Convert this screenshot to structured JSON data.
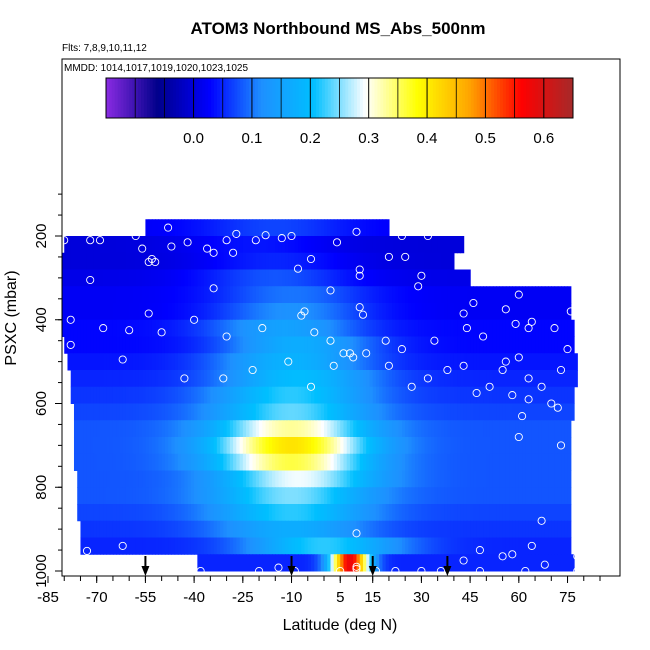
{
  "chart_data": {
    "type": "heatmap",
    "title": "ATOM3 Northbound MS_Abs_500nm",
    "subtitle_flights": "Flts: 7,8,9,10,11,12",
    "subtitle_dates": "MMDD: 1014,1017,1019,1020,1023,1025",
    "xlabel": "Latitude (deg N)",
    "ylabel": "PSXC (mbar)",
    "xlim": [
      -85,
      85
    ],
    "ylim": [
      1000,
      0
    ],
    "x_ticks": [
      "-85",
      "-70",
      "-55",
      "-40",
      "-25",
      "-10",
      "5",
      "15",
      "30",
      "45",
      "60",
      "75"
    ],
    "x_tick_values": [
      -85,
      -70,
      -55,
      -40,
      -25,
      -10,
      5,
      15,
      30,
      45,
      60,
      75
    ],
    "y_ticks": [
      "200",
      "400",
      "600",
      "800",
      "1000"
    ],
    "y_tick_values": [
      200,
      400,
      600,
      800,
      1000
    ],
    "colorbar": {
      "range": [
        -0.15,
        0.65
      ],
      "ticks": [
        "0.0",
        "0.1",
        "0.2",
        "0.3",
        "0.4",
        "0.5",
        "0.6"
      ],
      "tick_values": [
        0.0,
        0.1,
        0.2,
        0.3,
        0.4,
        0.5,
        0.6
      ],
      "colors": [
        "#8a2be2",
        "#00008b",
        "#0000ff",
        "#1e90ff",
        "#00bfff",
        "#ffffff",
        "#ffff00",
        "#ffa500",
        "#ff0000",
        "#a52a2a"
      ]
    },
    "grid": false,
    "legend": "colorbar-top",
    "pressure_levels": [
      180,
      220,
      260,
      300,
      340,
      380,
      420,
      460,
      500,
      540,
      580,
      620,
      660,
      700,
      740,
      780,
      820,
      860,
      900,
      940,
      980
    ],
    "row_lat_range": [
      [
        -55,
        20
      ],
      [
        -80,
        43
      ],
      [
        -82,
        40
      ],
      [
        -83,
        45
      ],
      [
        -83,
        76
      ],
      [
        -82,
        76
      ],
      [
        -81,
        77
      ],
      [
        -80,
        77
      ],
      [
        -79,
        78
      ],
      [
        -78,
        78
      ],
      [
        -78,
        77
      ],
      [
        -77,
        77
      ],
      [
        -77,
        76
      ],
      [
        -77,
        76
      ],
      [
        -77,
        76
      ],
      [
        -76,
        76
      ],
      [
        -76,
        76
      ],
      [
        -76,
        76
      ],
      [
        -75,
        76
      ],
      [
        -75,
        76
      ],
      [
        -39,
        77
      ]
    ],
    "row_peak_lat": [
      -15,
      -20,
      -15,
      -15,
      -10,
      -10,
      -12,
      -8,
      -10,
      -8,
      -10,
      -10,
      -10,
      -10,
      -10,
      -8,
      -10,
      -10,
      -10,
      0,
      8
    ],
    "row_peak_value": [
      0.07,
      0.04,
      0.05,
      0.08,
      0.1,
      0.12,
      0.15,
      0.17,
      0.18,
      0.2,
      0.22,
      0.24,
      0.33,
      0.41,
      0.36,
      0.29,
      0.25,
      0.22,
      0.17,
      0.22,
      0.58
    ],
    "row_background_value": [
      0.02,
      0.0,
      0.0,
      0.01,
      0.02,
      0.02,
      0.03,
      0.03,
      0.04,
      0.05,
      0.06,
      0.07,
      0.08,
      0.08,
      0.08,
      0.08,
      0.08,
      0.07,
      0.06,
      0.05,
      0.05
    ],
    "sample_points": [
      [
        -48,
        180
      ],
      [
        -27,
        195
      ],
      [
        -18,
        198
      ],
      [
        10,
        190
      ],
      [
        -58,
        200
      ],
      [
        -10,
        200
      ],
      [
        -13,
        205
      ],
      [
        -80,
        210
      ],
      [
        -72,
        210
      ],
      [
        -69,
        210
      ],
      [
        -42,
        215
      ],
      [
        -30,
        210
      ],
      [
        4,
        215
      ],
      [
        24,
        200
      ],
      [
        32,
        200
      ],
      [
        -47,
        225
      ],
      [
        -21,
        210
      ],
      [
        -56,
        230
      ],
      [
        -36,
        230
      ],
      [
        -53,
        255
      ],
      [
        -54,
        262
      ],
      [
        -52,
        262
      ],
      [
        -34,
        240
      ],
      [
        -28,
        240
      ],
      [
        -8,
        278
      ],
      [
        -4,
        255
      ],
      [
        11,
        280
      ],
      [
        11,
        295
      ],
      [
        20,
        250
      ],
      [
        25,
        250
      ],
      [
        30,
        295
      ],
      [
        47,
        270
      ],
      [
        50,
        248
      ],
      [
        62,
        280
      ],
      [
        79,
        280
      ],
      [
        -84,
        330
      ],
      [
        -72,
        305
      ],
      [
        -54,
        385
      ],
      [
        -34,
        325
      ],
      [
        -6,
        380
      ],
      [
        -7,
        390
      ],
      [
        2,
        330
      ],
      [
        11,
        370
      ],
      [
        12,
        388
      ],
      [
        29,
        320
      ],
      [
        43,
        385
      ],
      [
        46,
        360
      ],
      [
        60,
        340
      ],
      [
        56,
        375
      ],
      [
        64,
        405
      ],
      [
        63,
        420
      ],
      [
        76,
        380
      ],
      [
        -78,
        400
      ],
      [
        -68,
        420
      ],
      [
        -60,
        425
      ],
      [
        -50,
        430
      ],
      [
        -40,
        400
      ],
      [
        -30,
        440
      ],
      [
        -19,
        420
      ],
      [
        -3,
        430
      ],
      [
        2,
        450
      ],
      [
        6,
        480
      ],
      [
        13,
        480
      ],
      [
        19,
        450
      ],
      [
        24,
        470
      ],
      [
        34,
        450
      ],
      [
        44,
        420
      ],
      [
        49,
        440
      ],
      [
        59,
        410
      ],
      [
        71,
        420
      ],
      [
        -78,
        460
      ],
      [
        -62,
        495
      ],
      [
        -43,
        540
      ],
      [
        -31,
        540
      ],
      [
        -22,
        520
      ],
      [
        -11,
        500
      ],
      [
        -4,
        560
      ],
      [
        3,
        510
      ],
      [
        8,
        480
      ],
      [
        9,
        490
      ],
      [
        20,
        510
      ],
      [
        27,
        560
      ],
      [
        32,
        540
      ],
      [
        38,
        520
      ],
      [
        43,
        510
      ],
      [
        47,
        575
      ],
      [
        51,
        560
      ],
      [
        55,
        520
      ],
      [
        56,
        500
      ],
      [
        60,
        490
      ],
      [
        63,
        540
      ],
      [
        67,
        560
      ],
      [
        73,
        520
      ],
      [
        75,
        470
      ],
      [
        79,
        460
      ],
      [
        -85,
        500
      ],
      [
        -83,
        540
      ],
      [
        58,
        580
      ],
      [
        63,
        590
      ],
      [
        70,
        600
      ],
      [
        72,
        610
      ],
      [
        61,
        630
      ],
      [
        60,
        680
      ],
      [
        73,
        700
      ],
      [
        79,
        850
      ],
      [
        67,
        880
      ],
      [
        64,
        940
      ],
      [
        58,
        960
      ],
      [
        10,
        910
      ],
      [
        10,
        990
      ],
      [
        16,
        1000
      ],
      [
        48,
        950
      ],
      [
        55,
        965
      ],
      [
        78,
        965
      ],
      [
        62,
        1000
      ],
      [
        -73,
        952
      ],
      [
        -62,
        940
      ],
      [
        -38,
        1000
      ],
      [
        -20,
        1000
      ],
      [
        -14,
        992
      ],
      [
        -9,
        1000
      ],
      [
        5,
        1000
      ],
      [
        10,
        995
      ],
      [
        22,
        1000
      ],
      [
        30,
        1000
      ],
      [
        36,
        1000
      ],
      [
        43,
        975
      ],
      [
        48,
        1000
      ],
      [
        68,
        985
      ],
      [
        78,
        1000
      ]
    ],
    "arrow_latitudes": [
      -55,
      -10,
      15,
      38
    ]
  }
}
